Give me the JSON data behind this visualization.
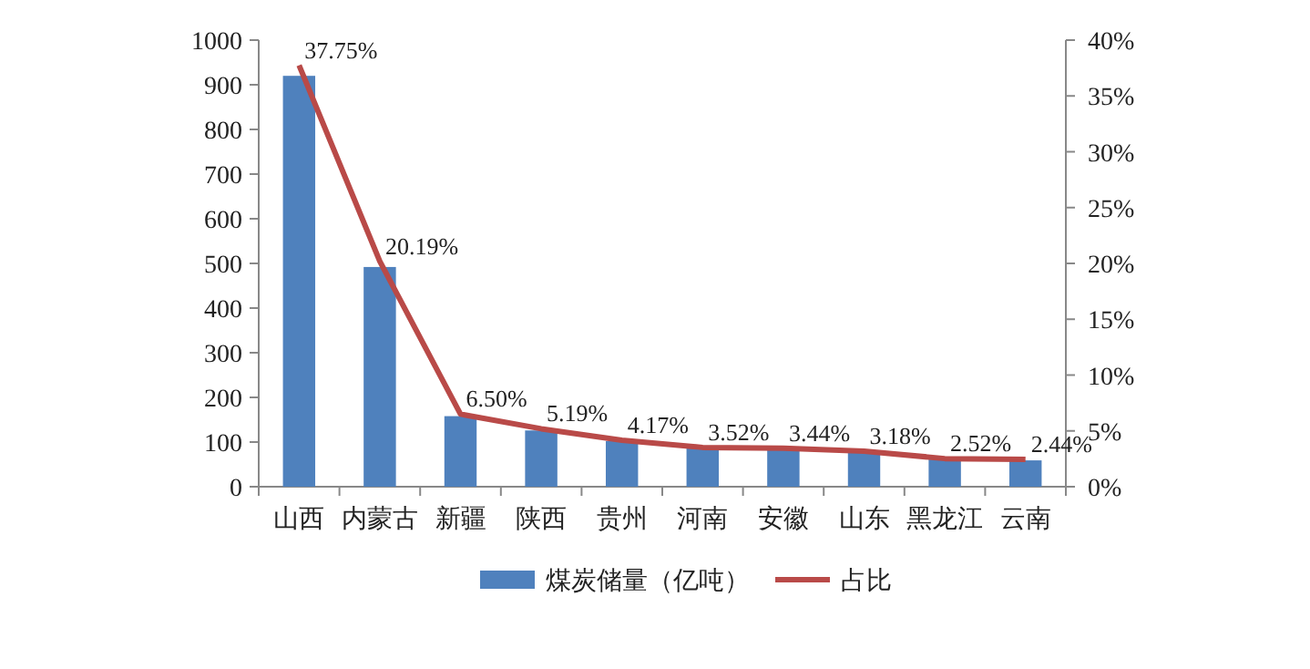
{
  "chart_data": {
    "type": "bar",
    "categories": [
      "山西",
      "内蒙古",
      "新疆",
      "陕西",
      "贵州",
      "河南",
      "安徽",
      "山东",
      "黑龙江",
      "云南"
    ],
    "series": [
      {
        "name": "煤炭储量（亿吨）",
        "color": "#4f81bd",
        "values": [
          920,
          492,
          158,
          126,
          102,
          86,
          84,
          77,
          61,
          59
        ]
      },
      {
        "name": "占比",
        "type": "line",
        "axis": "y2",
        "color": "#b94a48",
        "values": [
          37.75,
          20.19,
          6.5,
          5.19,
          4.17,
          3.52,
          3.44,
          3.18,
          2.52,
          2.44
        ],
        "value_labels": [
          "37.75%",
          "20.19%",
          "6.50%",
          "5.19%",
          "4.17%",
          "3.52%",
          "3.44%",
          "3.18%",
          "2.52%",
          "2.44%"
        ]
      }
    ],
    "ylim": [
      0,
      1000
    ],
    "yticks": [
      0,
      100,
      200,
      300,
      400,
      500,
      600,
      700,
      800,
      900,
      1000
    ],
    "y2lim": [
      0,
      40
    ],
    "y2ticks": [
      {
        "value": 0,
        "label": "0%"
      },
      {
        "value": 5,
        "label": "5%"
      },
      {
        "value": 10,
        "label": "10%"
      },
      {
        "value": 15,
        "label": "15%"
      },
      {
        "value": 20,
        "label": "20%"
      },
      {
        "value": 25,
        "label": "25%"
      },
      {
        "value": 30,
        "label": "30%"
      },
      {
        "value": 35,
        "label": "35%"
      },
      {
        "value": 40,
        "label": "40%"
      }
    ],
    "grid": false,
    "legend": "bottom",
    "marker": "none"
  }
}
